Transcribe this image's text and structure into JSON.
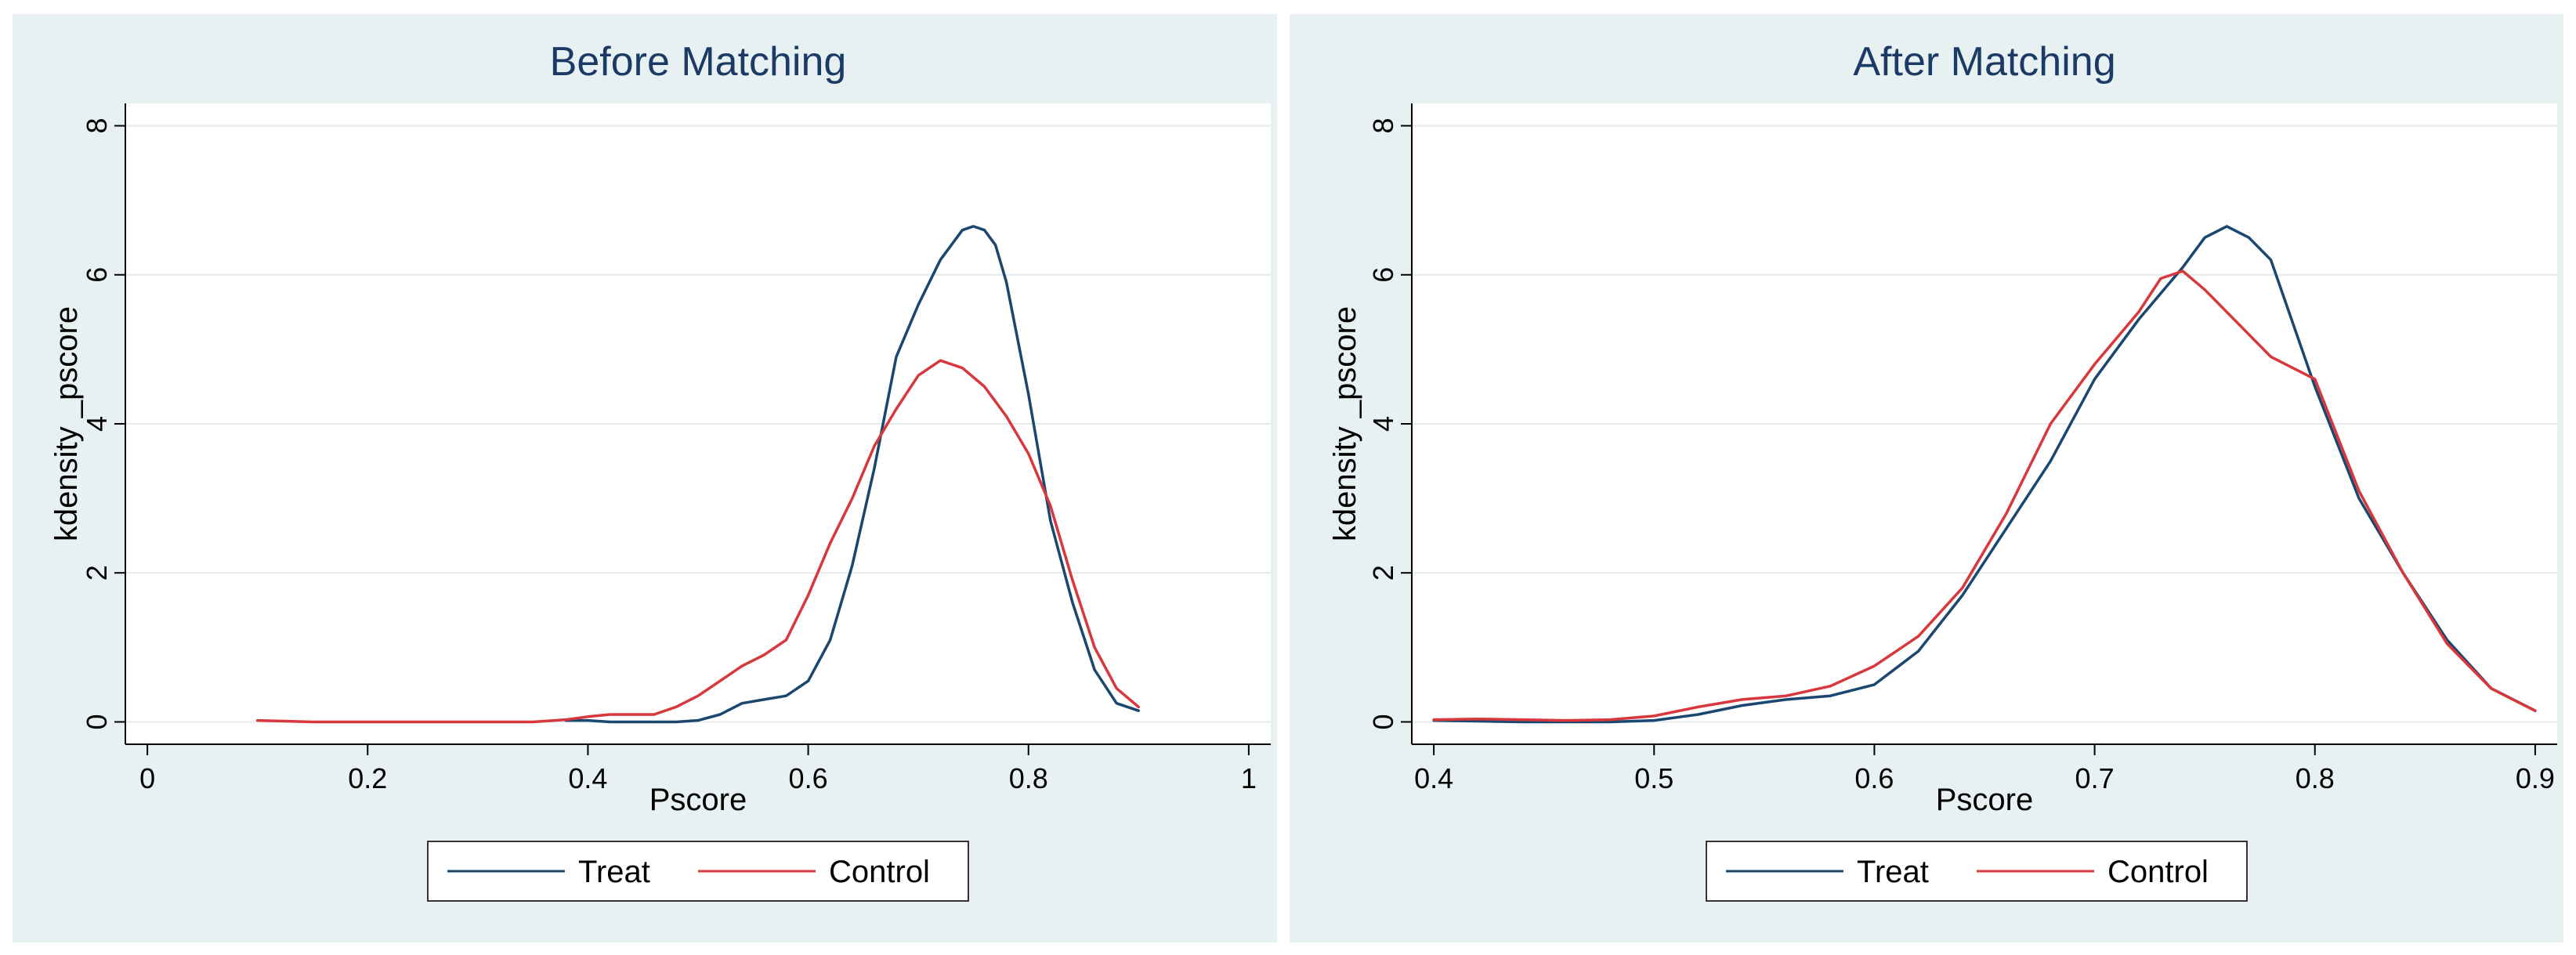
{
  "colors": {
    "background": "#e8f1f2",
    "plot_bg": "#ffffff",
    "treat": "#1a476f",
    "control": "#d8373c",
    "title": "#1c3a66",
    "grid": "#e4ebed"
  },
  "chart_data": [
    {
      "type": "line",
      "title": "Before Matching",
      "xlabel": "Pscore",
      "ylabel": "kdensity _pscore",
      "xlim": [
        -0.02,
        1.02
      ],
      "ylim": [
        -0.3,
        8.3
      ],
      "xticks": [
        0,
        0.2,
        0.4,
        0.6,
        0.8,
        1
      ],
      "xtick_labels": [
        "0",
        "0.2",
        "0.4",
        "0.6",
        "0.8",
        "1"
      ],
      "yticks": [
        0,
        2,
        4,
        6,
        8
      ],
      "ytick_labels": [
        "0",
        "2",
        "4",
        "6",
        "8"
      ],
      "grid": true,
      "legend_position": "bottom",
      "series": [
        {
          "name": "Treat",
          "color": "#1a476f",
          "x": [
            0.38,
            0.4,
            0.42,
            0.45,
            0.48,
            0.5,
            0.52,
            0.54,
            0.56,
            0.58,
            0.6,
            0.62,
            0.64,
            0.66,
            0.68,
            0.7,
            0.72,
            0.74,
            0.75,
            0.76,
            0.77,
            0.78,
            0.8,
            0.82,
            0.84,
            0.86,
            0.88,
            0.9
          ],
          "y": [
            0.02,
            0.02,
            0.0,
            0.0,
            0.0,
            0.02,
            0.1,
            0.25,
            0.3,
            0.35,
            0.55,
            1.1,
            2.1,
            3.4,
            4.9,
            5.6,
            6.2,
            6.6,
            6.65,
            6.6,
            6.4,
            5.9,
            4.4,
            2.7,
            1.6,
            0.7,
            0.25,
            0.15
          ]
        },
        {
          "name": "Control",
          "color": "#d8373c",
          "x": [
            0.1,
            0.15,
            0.2,
            0.25,
            0.3,
            0.35,
            0.38,
            0.4,
            0.42,
            0.44,
            0.46,
            0.48,
            0.5,
            0.52,
            0.54,
            0.56,
            0.58,
            0.6,
            0.62,
            0.64,
            0.66,
            0.68,
            0.7,
            0.72,
            0.73,
            0.74,
            0.76,
            0.78,
            0.8,
            0.82,
            0.84,
            0.86,
            0.88,
            0.9
          ],
          "y": [
            0.02,
            0.0,
            0.0,
            0.0,
            0.0,
            0.0,
            0.03,
            0.07,
            0.1,
            0.1,
            0.1,
            0.2,
            0.35,
            0.55,
            0.75,
            0.9,
            1.1,
            1.7,
            2.4,
            3.0,
            3.7,
            4.2,
            4.65,
            4.85,
            4.8,
            4.75,
            4.5,
            4.1,
            3.6,
            2.9,
            1.9,
            1.0,
            0.45,
            0.2
          ]
        }
      ]
    },
    {
      "type": "line",
      "title": "After Matching",
      "xlabel": "Pscore",
      "ylabel": "kdensity _pscore",
      "xlim": [
        0.39,
        0.91
      ],
      "ylim": [
        -0.3,
        8.3
      ],
      "xticks": [
        0.4,
        0.5,
        0.6,
        0.7,
        0.8,
        0.9
      ],
      "xtick_labels": [
        "0.4",
        "0.5",
        "0.6",
        "0.7",
        "0.8",
        "0.9"
      ],
      "yticks": [
        0,
        2,
        4,
        6,
        8
      ],
      "ytick_labels": [
        "0",
        "2",
        "4",
        "6",
        "8"
      ],
      "grid": true,
      "legend_position": "bottom",
      "series": [
        {
          "name": "Treat",
          "color": "#1a476f",
          "x": [
            0.4,
            0.42,
            0.44,
            0.46,
            0.48,
            0.5,
            0.52,
            0.54,
            0.56,
            0.58,
            0.6,
            0.62,
            0.64,
            0.66,
            0.68,
            0.7,
            0.72,
            0.74,
            0.75,
            0.76,
            0.77,
            0.78,
            0.8,
            0.82,
            0.84,
            0.86,
            0.88,
            0.9
          ],
          "y": [
            0.02,
            0.01,
            0.0,
            0.0,
            0.0,
            0.02,
            0.1,
            0.22,
            0.3,
            0.35,
            0.5,
            0.95,
            1.7,
            2.6,
            3.5,
            4.6,
            5.4,
            6.1,
            6.5,
            6.65,
            6.5,
            6.2,
            4.5,
            3.0,
            2.0,
            1.1,
            0.45,
            0.15
          ]
        },
        {
          "name": "Control",
          "color": "#d8373c",
          "x": [
            0.4,
            0.42,
            0.44,
            0.46,
            0.48,
            0.5,
            0.52,
            0.54,
            0.56,
            0.58,
            0.6,
            0.62,
            0.64,
            0.66,
            0.68,
            0.7,
            0.72,
            0.73,
            0.74,
            0.75,
            0.76,
            0.78,
            0.8,
            0.82,
            0.84,
            0.86,
            0.88,
            0.9
          ],
          "y": [
            0.03,
            0.04,
            0.03,
            0.02,
            0.03,
            0.08,
            0.2,
            0.3,
            0.35,
            0.48,
            0.75,
            1.15,
            1.8,
            2.8,
            4.0,
            4.8,
            5.5,
            5.95,
            6.05,
            5.8,
            5.5,
            4.9,
            4.6,
            3.1,
            2.0,
            1.05,
            0.45,
            0.15
          ]
        }
      ]
    }
  ]
}
